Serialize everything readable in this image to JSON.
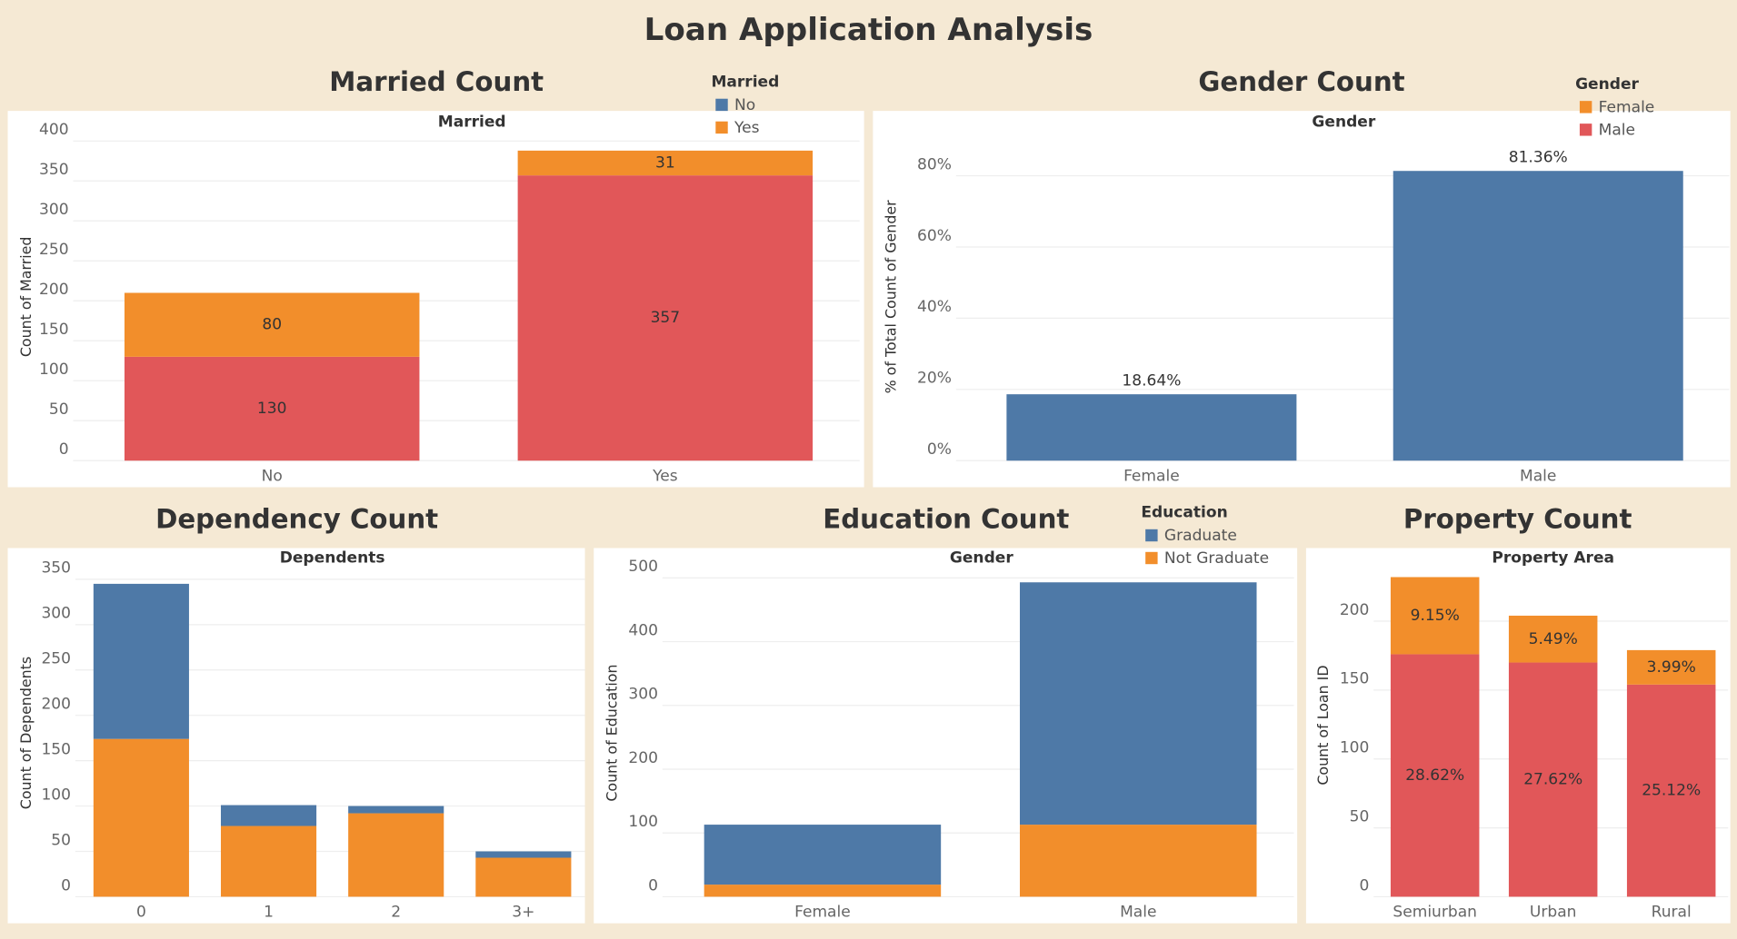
{
  "title": "Loan Application Analysis",
  "chart_data": [
    {
      "type": "stacked_bar",
      "title": "Married  Count",
      "header": "Married",
      "y_label": "Count of Married",
      "categories": [
        "No",
        "Yes"
      ],
      "series": [
        {
          "color": "#e15759",
          "label_color": "#ffffff",
          "values": [
            130,
            357
          ]
        },
        {
          "color": "#f28e2b",
          "label_color": "#333333",
          "values": [
            80,
            31
          ]
        }
      ],
      "data_labels": "inside",
      "legend": {
        "title": "Married",
        "items": [
          {
            "name": "No",
            "color": "#4e79a7"
          },
          {
            "name": "Yes",
            "color": "#f28e2b"
          }
        ]
      },
      "ylim": [
        0,
        410
      ],
      "yticks": [
        0,
        50,
        100,
        150,
        200,
        250,
        300,
        350,
        400
      ],
      "grid": true
    },
    {
      "type": "bar",
      "title": "Gender Count",
      "header": "Gender",
      "y_label": "% of Total Count of Gender",
      "categories": [
        "Female",
        "Male"
      ],
      "values": [
        18.64,
        81.36
      ],
      "value_labels": [
        "18.64%",
        "81.36%"
      ],
      "color": "#4e79a7",
      "label_color": "#333333",
      "data_labels": "above",
      "legend": {
        "title": "Gender",
        "items": [
          {
            "name": "Female",
            "color": "#f28e2b"
          },
          {
            "name": "Male",
            "color": "#e15759"
          }
        ]
      },
      "ylim": [
        0,
        92
      ],
      "yticks": [
        {
          "value": 0,
          "label": "0%"
        },
        {
          "value": 20,
          "label": "20%"
        },
        {
          "value": 40,
          "label": "40%"
        },
        {
          "value": 60,
          "label": "60%"
        },
        {
          "value": 80,
          "label": "80%"
        }
      ],
      "grid": true
    },
    {
      "type": "stacked_bar",
      "title": "Dependency Count",
      "header": "Dependents",
      "y_label": "Count of Dependents",
      "categories": [
        "0",
        "1",
        "2",
        "3+"
      ],
      "series": [
        {
          "color": "#f28e2b",
          "values": [
            174,
            78,
            92,
            43
          ]
        },
        {
          "color": "#4e79a7",
          "values": [
            171,
            23,
            8,
            7
          ]
        }
      ],
      "ylim": [
        0,
        360
      ],
      "yticks": [
        0,
        50,
        100,
        150,
        200,
        250,
        300,
        350
      ],
      "grid": true
    },
    {
      "type": "stacked_bar",
      "title": "Education Count",
      "header": "Gender",
      "y_label": "Count of Education",
      "categories": [
        "Female",
        "Male"
      ],
      "legend_title": "Education",
      "series": [
        {
          "name": "Not Graduate",
          "color": "#f28e2b",
          "values": [
            19,
            113
          ]
        },
        {
          "name": "Graduate",
          "color": "#4e79a7",
          "values": [
            94,
            380
          ]
        }
      ],
      "legend_order": [
        1,
        0
      ],
      "ylim": [
        0,
        512
      ],
      "yticks": [
        0,
        100,
        200,
        300,
        400,
        500
      ],
      "grid": true
    },
    {
      "type": "stacked_bar",
      "title": "Property Count",
      "header": "Property Area",
      "y_label": "Count of Loan ID",
      "categories": [
        "Semiurban",
        "Urban",
        "Rural"
      ],
      "series": [
        {
          "color": "#e15759",
          "label_color": "#ffffff",
          "values": [
            176,
            170,
            154
          ],
          "segment_labels": [
            "28.62%",
            "27.62%",
            "25.12%"
          ]
        },
        {
          "color": "#f28e2b",
          "label_color": "#333333",
          "values": [
            56,
            34,
            25
          ],
          "segment_labels": [
            "9.15%",
            "5.49%",
            "3.99%"
          ]
        }
      ],
      "data_labels": "inside",
      "ylim": [
        0,
        237
      ],
      "yticks": [
        0,
        50,
        100,
        150,
        200
      ],
      "grid": true
    }
  ]
}
